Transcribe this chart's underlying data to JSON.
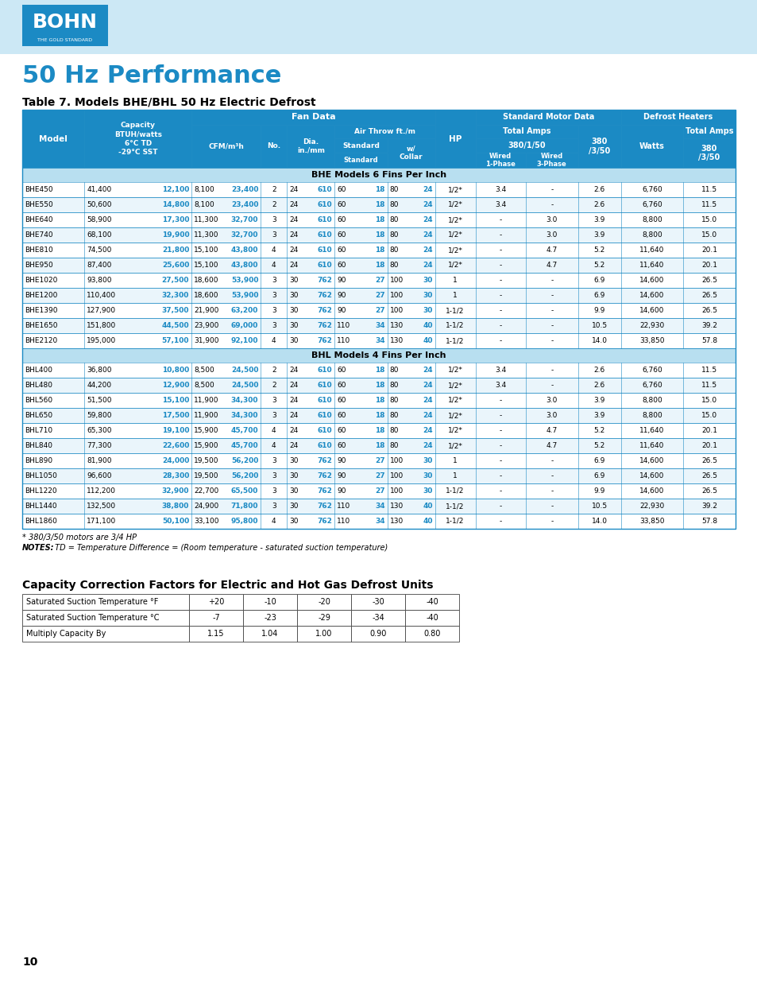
{
  "title_main": "50 Hz Performance",
  "table_title": "Table 7. Models BHE/BHL 50 Hz Electric Defrost",
  "header_bg": "#1b8ac4",
  "header_text": "#ffffff",
  "separator_bg": "#b8dff0",
  "blue_text": "#1b8ac4",
  "border_color": "#1b8ac4",
  "bhe_rows": [
    [
      "BHE450",
      "41,400",
      "12,100",
      "8,100",
      "23,400",
      "2",
      "24",
      "610",
      "60",
      "18",
      "80",
      "24",
      "1/2*",
      "3.4",
      "-",
      "2.6",
      "6,760",
      "11.5"
    ],
    [
      "BHE550",
      "50,600",
      "14,800",
      "8,100",
      "23,400",
      "2",
      "24",
      "610",
      "60",
      "18",
      "80",
      "24",
      "1/2*",
      "3.4",
      "-",
      "2.6",
      "6,760",
      "11.5"
    ],
    [
      "BHE640",
      "58,900",
      "17,300",
      "11,300",
      "32,700",
      "3",
      "24",
      "610",
      "60",
      "18",
      "80",
      "24",
      "1/2*",
      "-",
      "3.0",
      "3.9",
      "8,800",
      "15.0"
    ],
    [
      "BHE740",
      "68,100",
      "19,900",
      "11,300",
      "32,700",
      "3",
      "24",
      "610",
      "60",
      "18",
      "80",
      "24",
      "1/2*",
      "-",
      "3.0",
      "3.9",
      "8,800",
      "15.0"
    ],
    [
      "BHE810",
      "74,500",
      "21,800",
      "15,100",
      "43,800",
      "4",
      "24",
      "610",
      "60",
      "18",
      "80",
      "24",
      "1/2*",
      "-",
      "4.7",
      "5.2",
      "11,640",
      "20.1"
    ],
    [
      "BHE950",
      "87,400",
      "25,600",
      "15,100",
      "43,800",
      "4",
      "24",
      "610",
      "60",
      "18",
      "80",
      "24",
      "1/2*",
      "-",
      "4.7",
      "5.2",
      "11,640",
      "20.1"
    ],
    [
      "BHE1020",
      "93,800",
      "27,500",
      "18,600",
      "53,900",
      "3",
      "30",
      "762",
      "90",
      "27",
      "100",
      "30",
      "1",
      "-",
      "-",
      "6.9",
      "14,600",
      "26.5"
    ],
    [
      "BHE1200",
      "110,400",
      "32,300",
      "18,600",
      "53,900",
      "3",
      "30",
      "762",
      "90",
      "27",
      "100",
      "30",
      "1",
      "-",
      "-",
      "6.9",
      "14,600",
      "26.5"
    ],
    [
      "BHE1390",
      "127,900",
      "37,500",
      "21,900",
      "63,200",
      "3",
      "30",
      "762",
      "90",
      "27",
      "100",
      "30",
      "1-1/2",
      "-",
      "-",
      "9.9",
      "14,600",
      "26.5"
    ],
    [
      "BHE1650",
      "151,800",
      "44,500",
      "23,900",
      "69,000",
      "3",
      "30",
      "762",
      "110",
      "34",
      "130",
      "40",
      "1-1/2",
      "-",
      "-",
      "10.5",
      "22,930",
      "39.2"
    ],
    [
      "BHE2120",
      "195,000",
      "57,100",
      "31,900",
      "92,100",
      "4",
      "30",
      "762",
      "110",
      "34",
      "130",
      "40",
      "1-1/2",
      "-",
      "-",
      "14.0",
      "33,850",
      "57.8"
    ]
  ],
  "bhl_rows": [
    [
      "BHL400",
      "36,800",
      "10,800",
      "8,500",
      "24,500",
      "2",
      "24",
      "610",
      "60",
      "18",
      "80",
      "24",
      "1/2*",
      "3.4",
      "-",
      "2.6",
      "6,760",
      "11.5"
    ],
    [
      "BHL480",
      "44,200",
      "12,900",
      "8,500",
      "24,500",
      "2",
      "24",
      "610",
      "60",
      "18",
      "80",
      "24",
      "1/2*",
      "3.4",
      "-",
      "2.6",
      "6,760",
      "11.5"
    ],
    [
      "BHL560",
      "51,500",
      "15,100",
      "11,900",
      "34,300",
      "3",
      "24",
      "610",
      "60",
      "18",
      "80",
      "24",
      "1/2*",
      "-",
      "3.0",
      "3.9",
      "8,800",
      "15.0"
    ],
    [
      "BHL650",
      "59,800",
      "17,500",
      "11,900",
      "34,300",
      "3",
      "24",
      "610",
      "60",
      "18",
      "80",
      "24",
      "1/2*",
      "-",
      "3.0",
      "3.9",
      "8,800",
      "15.0"
    ],
    [
      "BHL710",
      "65,300",
      "19,100",
      "15,900",
      "45,700",
      "4",
      "24",
      "610",
      "60",
      "18",
      "80",
      "24",
      "1/2*",
      "-",
      "4.7",
      "5.2",
      "11,640",
      "20.1"
    ],
    [
      "BHL840",
      "77,300",
      "22,600",
      "15,900",
      "45,700",
      "4",
      "24",
      "610",
      "60",
      "18",
      "80",
      "24",
      "1/2*",
      "-",
      "4.7",
      "5.2",
      "11,640",
      "20.1"
    ],
    [
      "BHL890",
      "81,900",
      "24,000",
      "19,500",
      "56,200",
      "3",
      "30",
      "762",
      "90",
      "27",
      "100",
      "30",
      "1",
      "-",
      "-",
      "6.9",
      "14,600",
      "26.5"
    ],
    [
      "BHL1050",
      "96,600",
      "28,300",
      "19,500",
      "56,200",
      "3",
      "30",
      "762",
      "90",
      "27",
      "100",
      "30",
      "1",
      "-",
      "-",
      "6.9",
      "14,600",
      "26.5"
    ],
    [
      "BHL1220",
      "112,200",
      "32,900",
      "22,700",
      "65,500",
      "3",
      "30",
      "762",
      "90",
      "27",
      "100",
      "30",
      "1-1/2",
      "-",
      "-",
      "9.9",
      "14,600",
      "26.5"
    ],
    [
      "BHL1440",
      "132,500",
      "38,800",
      "24,900",
      "71,800",
      "3",
      "30",
      "762",
      "110",
      "34",
      "130",
      "40",
      "1-1/2",
      "-",
      "-",
      "10.5",
      "22,930",
      "39.2"
    ],
    [
      "BHL1860",
      "171,100",
      "50,100",
      "33,100",
      "95,800",
      "4",
      "30",
      "762",
      "110",
      "34",
      "130",
      "40",
      "1-1/2",
      "-",
      "-",
      "14.0",
      "33,850",
      "57.8"
    ]
  ],
  "footnote1": "* 380/3/50 motors are 3/4 HP",
  "footnote2_bold": "NOTES:",
  "footnote2_rest": " TD = Temperature Difference = (Room temperature - saturated suction temperature)",
  "cap_table_title": "Capacity Correction Factors for Electric and Hot Gas Defrost Units",
  "cap_headers": [
    "Saturated Suction Temperature °F",
    "+20",
    "-10",
    "-20",
    "-30",
    "-40"
  ],
  "cap_row1": [
    "Saturated Suction Temperature °C",
    "-7",
    "-23",
    "-29",
    "-34",
    "-40"
  ],
  "cap_row2": [
    "Multiply Capacity By",
    "1.15",
    "1.04",
    "1.00",
    "0.90",
    "0.80"
  ],
  "page_number": "10"
}
